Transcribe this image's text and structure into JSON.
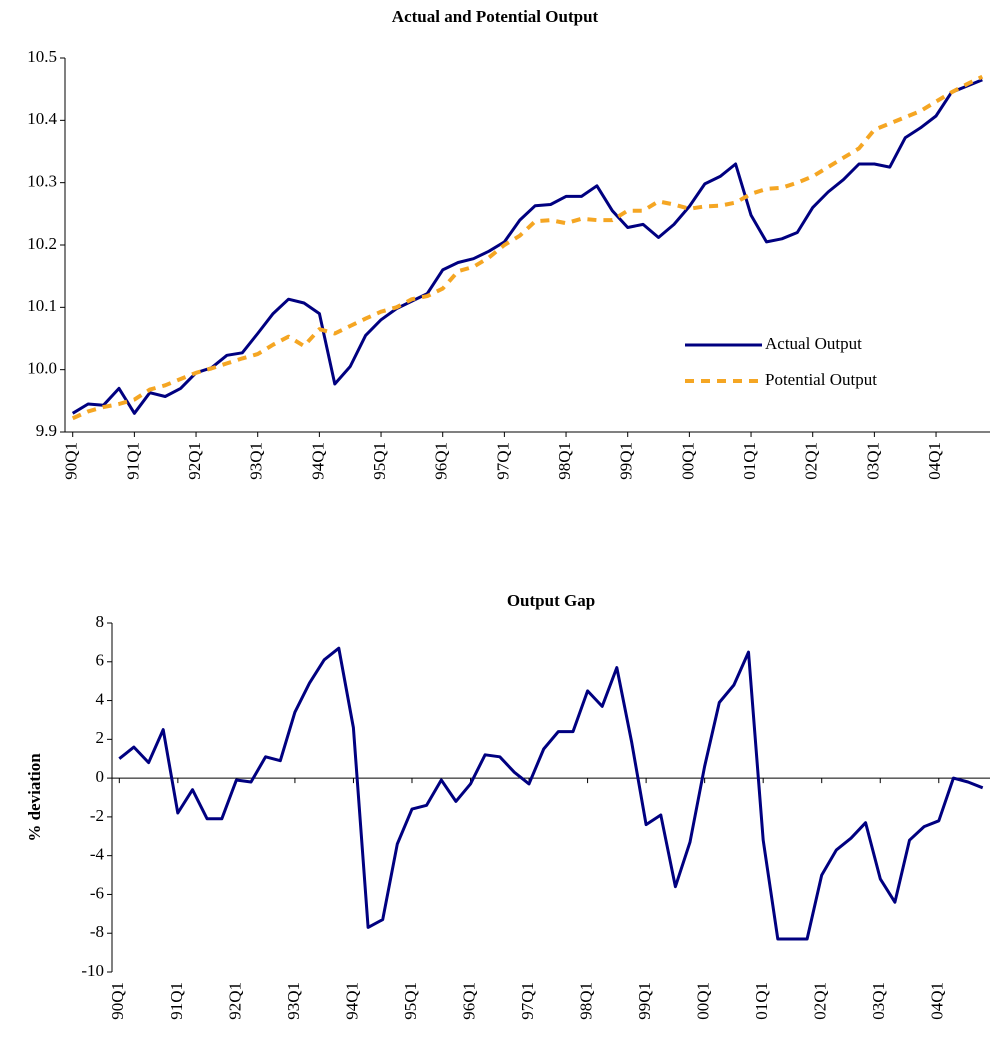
{
  "chart_data": [
    {
      "type": "line",
      "title": "Actual and Potential Output",
      "categories": [
        "90Q1",
        null,
        null,
        null,
        "91Q1",
        null,
        null,
        null,
        "92Q1",
        null,
        null,
        null,
        "93Q1",
        null,
        null,
        null,
        "94Q1",
        null,
        null,
        null,
        "95Q1",
        null,
        null,
        null,
        "96Q1",
        null,
        null,
        null,
        "97Q1",
        null,
        null,
        null,
        "98Q1",
        null,
        null,
        null,
        "99Q1",
        null,
        null,
        null,
        "00Q1",
        null,
        null,
        null,
        "01Q1",
        null,
        null,
        null,
        "02Q1",
        null,
        null,
        null,
        "03Q1",
        null,
        null,
        null,
        "04Q1",
        null,
        null,
        null
      ],
      "series": [
        {
          "name": "Actual Output",
          "color": "#000080",
          "dash": false,
          "values": [
            9.93,
            9.945,
            9.943,
            9.97,
            9.93,
            9.963,
            9.957,
            9.97,
            9.995,
            10.003,
            10.023,
            10.027,
            10.058,
            10.09,
            10.113,
            10.107,
            10.09,
            9.977,
            10.005,
            10.055,
            10.08,
            10.098,
            10.11,
            10.122,
            10.16,
            10.172,
            10.178,
            10.19,
            10.205,
            10.24,
            10.263,
            10.265,
            10.278,
            10.278,
            10.295,
            10.255,
            10.228,
            10.233,
            10.212,
            10.233,
            10.262,
            10.298,
            10.31,
            10.33,
            10.248,
            10.205,
            10.21,
            10.22,
            10.26,
            10.285,
            10.305,
            10.33,
            10.33,
            10.325,
            10.372,
            10.388,
            10.407,
            10.445,
            10.455,
            10.465
          ]
        },
        {
          "name": "Potential Output",
          "color": "#f5a623",
          "dash": true,
          "values": [
            9.922,
            9.933,
            9.94,
            9.945,
            9.952,
            9.968,
            9.975,
            9.985,
            9.995,
            10.002,
            10.01,
            10.018,
            10.025,
            10.04,
            10.053,
            10.038,
            10.065,
            10.058,
            10.07,
            10.082,
            10.093,
            10.1,
            10.113,
            10.118,
            10.13,
            10.158,
            10.165,
            10.18,
            10.2,
            10.215,
            10.238,
            10.24,
            10.235,
            10.242,
            10.24,
            10.24,
            10.255,
            10.255,
            10.27,
            10.265,
            10.258,
            10.262,
            10.263,
            10.268,
            10.282,
            10.29,
            10.292,
            10.3,
            10.31,
            10.325,
            10.34,
            10.355,
            10.385,
            10.395,
            10.405,
            10.415,
            10.43,
            10.445,
            10.458,
            10.47
          ]
        }
      ],
      "ylim": [
        9.9,
        10.5
      ],
      "yticks": [
        9.9,
        {
          "value": 10,
          "label": "10.0"
        },
        10.1,
        10.2,
        10.3,
        10.4,
        10.5
      ],
      "grid": false,
      "legend": "center-right"
    },
    {
      "type": "line",
      "title": "Output Gap",
      "y_label": "% deviation",
      "categories": [
        "90Q1",
        null,
        null,
        null,
        "91Q1",
        null,
        null,
        null,
        "92Q1",
        null,
        null,
        null,
        "93Q1",
        null,
        null,
        null,
        "94Q1",
        null,
        null,
        null,
        "95Q1",
        null,
        null,
        null,
        "96Q1",
        null,
        null,
        null,
        "97Q1",
        null,
        null,
        null,
        "98Q1",
        null,
        null,
        null,
        "99Q1",
        null,
        null,
        null,
        "00Q1",
        null,
        null,
        null,
        "01Q1",
        null,
        null,
        null,
        "02Q1",
        null,
        null,
        null,
        "03Q1",
        null,
        null,
        null,
        "04Q1",
        null,
        null,
        null
      ],
      "series": [
        {
          "color": "#000080",
          "dash": false,
          "values": [
            1.0,
            1.6,
            0.8,
            2.5,
            -1.8,
            -0.6,
            -2.1,
            -2.1,
            -0.1,
            -0.2,
            1.1,
            0.9,
            3.4,
            4.9,
            6.1,
            6.7,
            2.6,
            -7.7,
            -7.3,
            -3.4,
            -1.6,
            -1.4,
            -0.1,
            -1.2,
            -0.3,
            1.2,
            1.1,
            0.3,
            -0.3,
            1.5,
            2.4,
            2.4,
            4.5,
            3.7,
            5.7,
            1.9,
            -2.4,
            -1.9,
            -5.6,
            -3.3,
            0.6,
            3.9,
            4.8,
            6.5,
            -3.2,
            -8.3,
            -8.3,
            -8.3,
            -5.0,
            -3.7,
            -3.1,
            -2.3,
            -5.2,
            -6.4,
            -3.2,
            -2.5,
            -2.2,
            0.0,
            -0.2,
            -0.5
          ]
        }
      ],
      "ylim": [
        -10,
        8
      ],
      "yticks": [
        -10,
        -8,
        -6,
        -4,
        -2,
        0,
        2,
        4,
        6,
        8
      ],
      "grid": false
    }
  ]
}
